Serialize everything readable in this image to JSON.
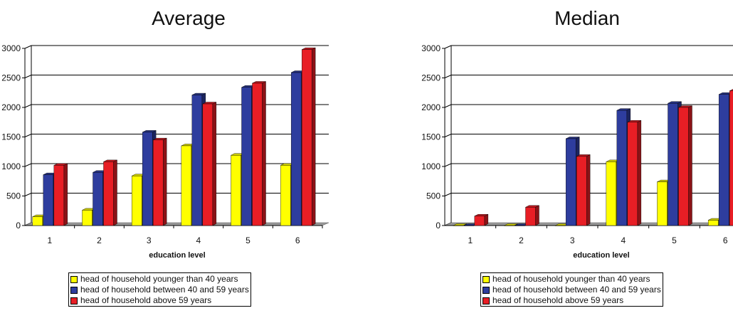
{
  "colors": {
    "young": "#ffff00",
    "mid": "#2e3d9e",
    "old": "#e81e25",
    "grid": "#000000",
    "floor": "#9a9a9a"
  },
  "legend": [
    {
      "key": "young",
      "label": "head of household younger than 40 years"
    },
    {
      "key": "mid",
      "label": "head of household between 40 and 59 years"
    },
    {
      "key": "old",
      "label": "head of household above 59 years"
    }
  ],
  "chart_data": [
    {
      "type": "bar",
      "title": "Average",
      "xlabel": "education level",
      "ylabel": "",
      "categories": [
        "1",
        "2",
        "3",
        "4",
        "5",
        "6"
      ],
      "ylim": [
        0,
        3000
      ],
      "yticks": [
        "0",
        "500",
        "1000",
        "1500",
        "2000",
        "2500",
        "3000"
      ],
      "grid": true,
      "legend_position": "bottom",
      "series": [
        {
          "name": "head of household younger than 40 years",
          "values": [
            150,
            260,
            840,
            1350,
            1190,
            1020
          ]
        },
        {
          "name": "head of household between 40 and 59 years",
          "values": [
            860,
            900,
            1580,
            2210,
            2340,
            2590
          ]
        },
        {
          "name": "head of household above 59 years",
          "values": [
            1020,
            1080,
            1450,
            2060,
            2410,
            2980
          ]
        }
      ]
    },
    {
      "type": "bar",
      "title": "Median",
      "xlabel": "education level",
      "ylabel": "",
      "categories": [
        "1",
        "2",
        "3",
        "4",
        "5",
        "6"
      ],
      "ylim": [
        0,
        3000
      ],
      "yticks": [
        "0",
        "500",
        "1000",
        "1500",
        "2000",
        "2500",
        "3000"
      ],
      "grid": true,
      "legend_position": "bottom",
      "series": [
        {
          "name": "head of household younger than 40 years",
          "values": [
            0,
            0,
            0,
            1080,
            740,
            90
          ]
        },
        {
          "name": "head of household between 40 and 59 years",
          "values": [
            0,
            0,
            1470,
            1950,
            2070,
            2220
          ]
        },
        {
          "name": "head of household above 59 years",
          "values": [
            160,
            310,
            1170,
            1750,
            2000,
            2280
          ]
        }
      ]
    }
  ]
}
